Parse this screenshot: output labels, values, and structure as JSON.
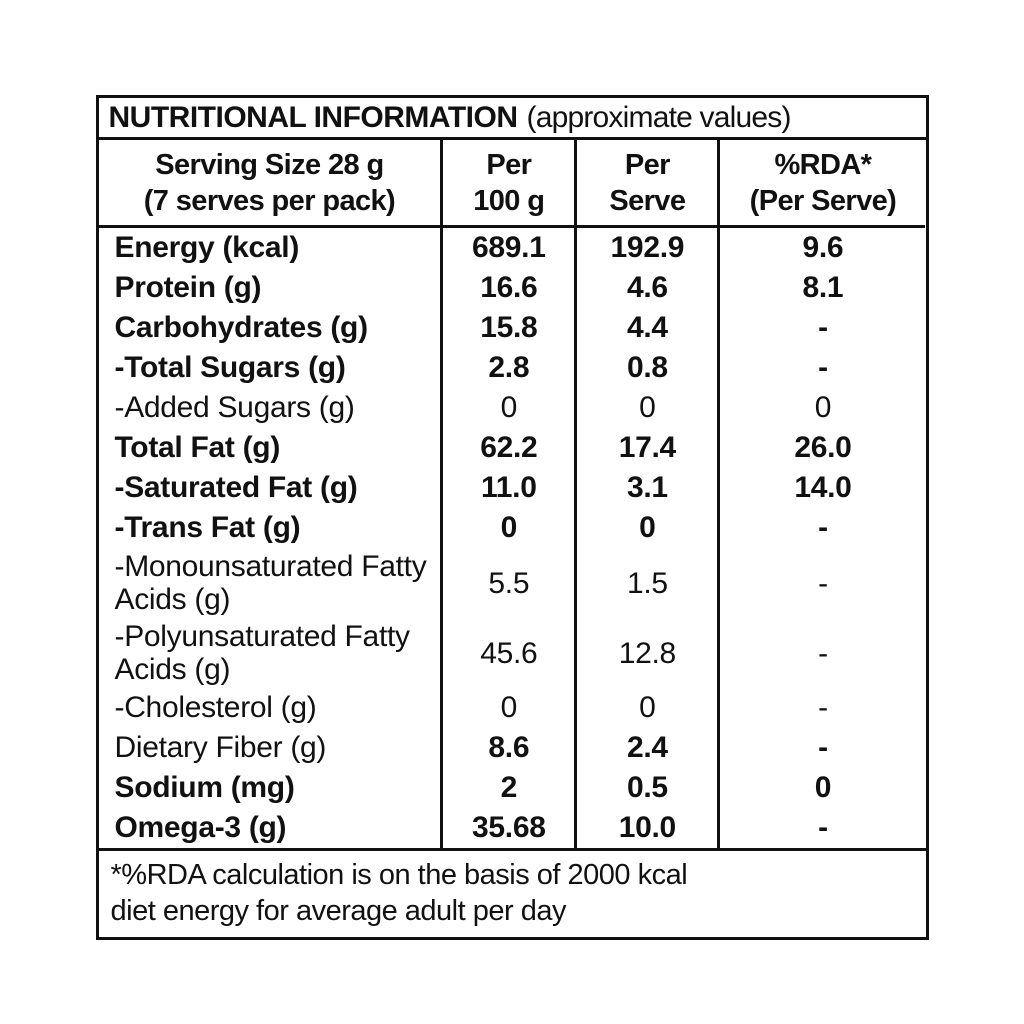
{
  "title": {
    "main": "NUTRITIONAL INFORMATION",
    "note": "(approximate values)"
  },
  "header": {
    "serving": {
      "line1": "Serving Size 28 g",
      "line2": "(7 serves per pack)"
    },
    "per_100g": {
      "line1": "Per",
      "line2": "100 g"
    },
    "per_serve": {
      "line1": "Per",
      "line2": "Serve"
    },
    "rda": {
      "line1": "%RDA*",
      "line2": "(Per Serve)"
    }
  },
  "rows": [
    {
      "label": "Energy (kcal)",
      "per_100g": "689.1",
      "per_serve": "192.9",
      "rda": "9.6"
    },
    {
      "label": "Protein (g)",
      "per_100g": "16.6",
      "per_serve": "4.6",
      "rda": "8.1"
    },
    {
      "label": "Carbohydrates (g)",
      "per_100g": "15.8",
      "per_serve": "4.4",
      "rda": "-"
    },
    {
      "label": "-Total Sugars (g)",
      "per_100g": "2.8",
      "per_serve": "0.8",
      "rda": "-"
    },
    {
      "label": "-Added Sugars (g)",
      "per_100g": "0",
      "per_serve": "0",
      "rda": "0"
    },
    {
      "label": "Total Fat (g)",
      "per_100g": "62.2",
      "per_serve": "17.4",
      "rda": "26.0"
    },
    {
      "label": "-Saturated Fat (g)",
      "per_100g": "11.0",
      "per_serve": "3.1",
      "rda": "14.0"
    },
    {
      "label": "-Trans Fat (g)",
      "per_100g": "0",
      "per_serve": "0",
      "rda": "-"
    },
    {
      "label": "-Monounsaturated Fatty Acids (g)",
      "per_100g": "5.5",
      "per_serve": "1.5",
      "rda": "-"
    },
    {
      "label": "-Polyunsaturated Fatty Acids (g)",
      "per_100g": "45.6",
      "per_serve": "12.8",
      "rda": "-"
    },
    {
      "label": "-Cholesterol (g)",
      "per_100g": "0",
      "per_serve": "0",
      "rda": "-"
    },
    {
      "label": "Dietary Fiber (g)",
      "per_100g": "8.6",
      "per_serve": "2.4",
      "rda": "-"
    },
    {
      "label": "Sodium (mg)",
      "per_100g": "2",
      "per_serve": "0.5",
      "rda": "0"
    },
    {
      "label": "Omega-3 (g)",
      "per_100g": "35.68",
      "per_serve": "10.0",
      "rda": "-"
    }
  ],
  "footnote": {
    "line1": "*%RDA calculation is on the basis of 2000 kcal",
    "line2": "diet energy for average adult per day"
  },
  "colors": {
    "text": "#111111",
    "border": "#111111",
    "background": "#ffffff"
  }
}
